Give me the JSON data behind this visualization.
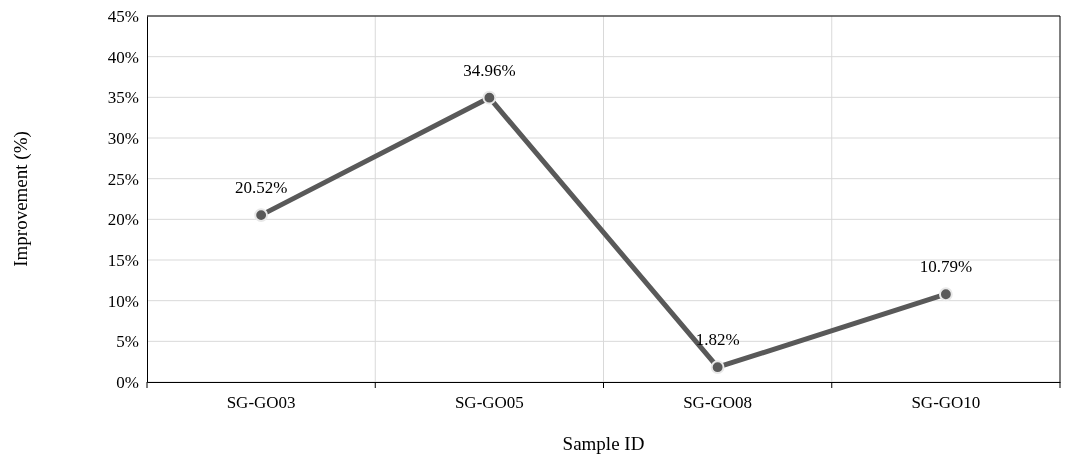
{
  "chart_data": {
    "type": "line",
    "xlabel": "Sample ID",
    "ylabel": "Improvement (%)",
    "categories": [
      "SG-GO03",
      "SG-GO05",
      "SG-GO08",
      "SG-GO10"
    ],
    "series": [
      {
        "color": "#595959",
        "values": [
          20.52,
          34.96,
          1.82,
          10.79
        ],
        "value_labels": [
          "20.52%",
          "34.96%",
          "1.82%",
          "10.79%"
        ]
      }
    ],
    "ylim": [
      0,
      45
    ],
    "yticks": [
      {
        "value": 0,
        "label": "0%"
      },
      {
        "value": 5,
        "label": "5%"
      },
      {
        "value": 10,
        "label": "10%"
      },
      {
        "value": 15,
        "label": "15%"
      },
      {
        "value": 20,
        "label": "20%"
      },
      {
        "value": 25,
        "label": "25%"
      },
      {
        "value": 30,
        "label": "30%"
      },
      {
        "value": 35,
        "label": "35%"
      },
      {
        "value": 40,
        "label": "40%"
      },
      {
        "value": 45,
        "label": "45%"
      }
    ],
    "grid": true,
    "marker": "circle",
    "line_style": "solid"
  }
}
